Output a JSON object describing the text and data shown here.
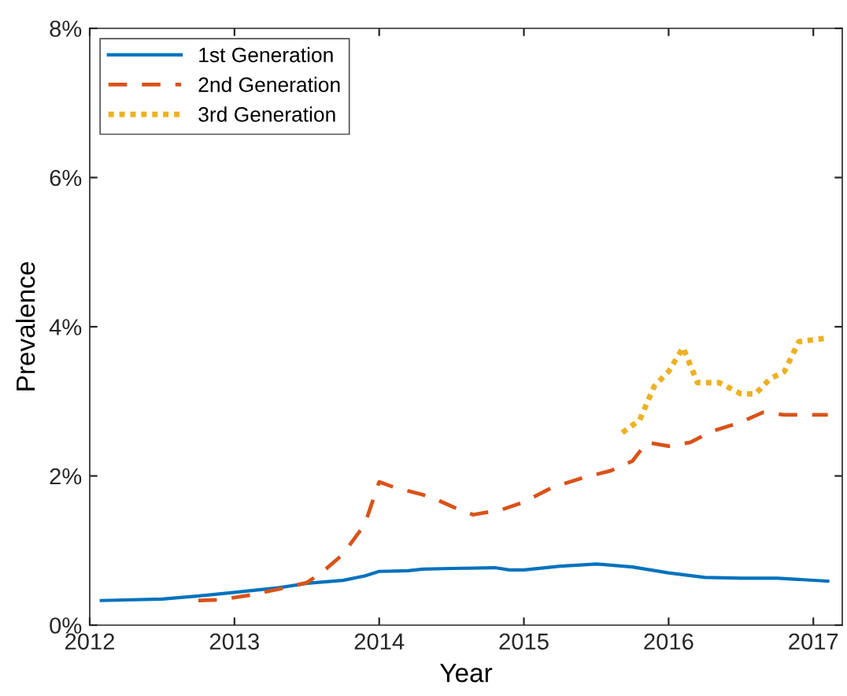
{
  "chart_data": {
    "type": "line",
    "xlabel": "Year",
    "ylabel": "Prevalence",
    "xlim": [
      2012,
      2017.2
    ],
    "xticks": [
      2012,
      2013,
      2014,
      2015,
      2016,
      2017
    ],
    "ylim": [
      0,
      8
    ],
    "yticks": [
      {
        "value": 0,
        "label": "0%"
      },
      {
        "value": 2,
        "label": "2%"
      },
      {
        "value": 4,
        "label": "4%"
      },
      {
        "value": 6,
        "label": "6%"
      },
      {
        "value": 8,
        "label": "8%"
      }
    ],
    "grid": false,
    "legend": "top left",
    "series": [
      {
        "name": "1st Generation",
        "color": "#0072bd",
        "line_style": "solid",
        "x": [
          2012.08,
          2012.5,
          2012.8,
          2013.0,
          2013.3,
          2013.5,
          2013.75,
          2013.9,
          2014.0,
          2014.2,
          2014.3,
          2014.5,
          2014.8,
          2014.9,
          2015.0,
          2015.25,
          2015.5,
          2015.75,
          2016.0,
          2016.25,
          2016.5,
          2016.75,
          2017.1
        ],
        "values": [
          0.33,
          0.35,
          0.4,
          0.44,
          0.5,
          0.56,
          0.6,
          0.66,
          0.72,
          0.73,
          0.75,
          0.76,
          0.77,
          0.74,
          0.74,
          0.79,
          0.82,
          0.78,
          0.7,
          0.64,
          0.63,
          0.63,
          0.59
        ]
      },
      {
        "name": "2nd Generation",
        "color": "#d95319",
        "line_style": "dashed",
        "x": [
          2012.75,
          2012.9,
          2013.1,
          2013.3,
          2013.5,
          2013.6,
          2013.75,
          2013.9,
          2014.0,
          2014.1,
          2014.3,
          2014.4,
          2014.55,
          2014.65,
          2014.85,
          2015.0,
          2015.2,
          2015.4,
          2015.6,
          2015.75,
          2015.85,
          2016.0,
          2016.15,
          2016.3,
          2016.5,
          2016.65,
          2016.8,
          2017.1
        ],
        "values": [
          0.33,
          0.34,
          0.4,
          0.48,
          0.57,
          0.7,
          0.95,
          1.35,
          1.92,
          1.85,
          1.75,
          1.68,
          1.55,
          1.48,
          1.55,
          1.65,
          1.85,
          1.97,
          2.07,
          2.2,
          2.45,
          2.4,
          2.45,
          2.6,
          2.72,
          2.85,
          2.82,
          2.82
        ]
      },
      {
        "name": "3rd Generation",
        "color": "#edb120",
        "line_style": "dotted",
        "x": [
          2015.68,
          2015.8,
          2015.9,
          2016.0,
          2016.1,
          2016.2,
          2016.35,
          2016.5,
          2016.6,
          2016.7,
          2016.8,
          2016.9,
          2017.1
        ],
        "values": [
          2.58,
          2.75,
          3.2,
          3.4,
          3.72,
          3.25,
          3.25,
          3.1,
          3.1,
          3.3,
          3.4,
          3.8,
          3.85
        ]
      }
    ]
  }
}
